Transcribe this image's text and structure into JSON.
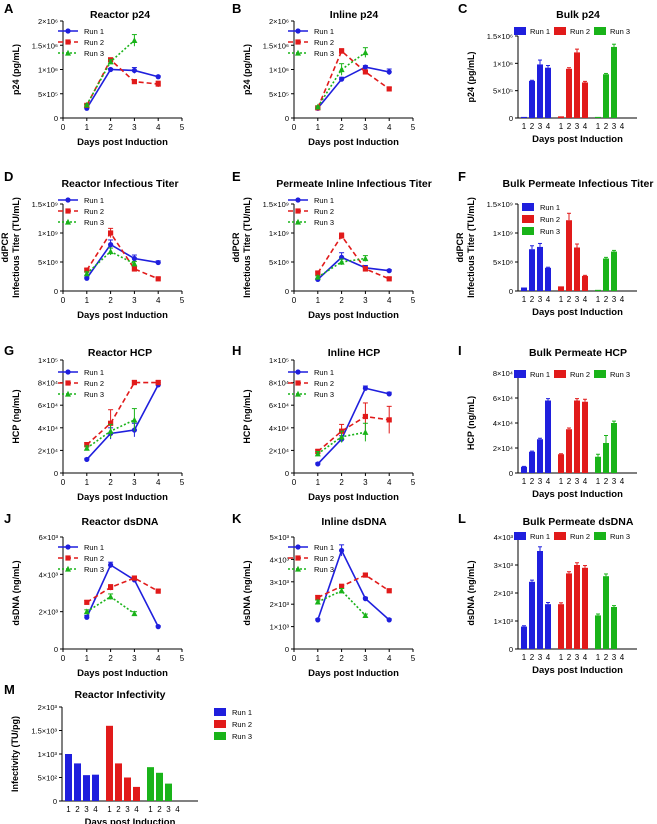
{
  "figure": {
    "series_names": [
      "Run 1",
      "Run 2",
      "Run 3"
    ],
    "colors": [
      "#1f1fdd",
      "#e11a1a",
      "#19b319"
    ]
  },
  "chart_data": [
    {
      "letter": "A",
      "type": "line",
      "title": "Reactor p24",
      "ylabel": "p24 (pg/mL)",
      "xlabel": "Days post Induction",
      "x": [
        1,
        2,
        3,
        4
      ],
      "xlim": [
        0,
        5
      ],
      "xticks": [
        "0",
        "1",
        "2",
        "3",
        "4",
        "5"
      ],
      "ylim": [
        0,
        2000000
      ],
      "yticks": [
        0,
        500000,
        1000000,
        1500000,
        2000000
      ],
      "ytick_labels": [
        "0",
        "5×10⁵",
        "1×10⁶",
        "1.5×10⁶",
        "2×10⁶"
      ],
      "series": [
        {
          "name": "Run 1",
          "values": [
            200000,
            1000000,
            980000,
            850000
          ],
          "err": [
            15000,
            20000,
            60000,
            20000
          ]
        },
        {
          "name": "Run 2",
          "values": [
            260000,
            1200000,
            750000,
            700000
          ],
          "err": [
            15000,
            30000,
            30000,
            60000
          ]
        },
        {
          "name": "Run 3",
          "values": [
            270000,
            1160000,
            1600000,
            null
          ],
          "err": [
            15000,
            40000,
            120000,
            null
          ]
        }
      ]
    },
    {
      "letter": "B",
      "type": "line",
      "title": "Inline p24",
      "ylabel": "p24 (pg/mL)",
      "xlabel": "Days post Induction",
      "x": [
        1,
        2,
        3,
        4
      ],
      "xlim": [
        0,
        5
      ],
      "xticks": [
        "0",
        "1",
        "2",
        "3",
        "4",
        "5"
      ],
      "ylim": [
        0,
        2000000
      ],
      "yticks": [
        0,
        500000,
        1000000,
        1500000,
        2000000
      ],
      "ytick_labels": [
        "0",
        "5×10⁵",
        "1×10⁶",
        "1.5×10⁶",
        "2×10⁶"
      ],
      "series": [
        {
          "name": "Run 1",
          "values": [
            200000,
            800000,
            1050000,
            950000
          ],
          "err": [
            15000,
            40000,
            30000,
            60000
          ]
        },
        {
          "name": "Run 2",
          "values": [
            210000,
            1380000,
            950000,
            600000
          ],
          "err": [
            15000,
            50000,
            40000,
            30000
          ]
        },
        {
          "name": "Run 3",
          "values": [
            230000,
            1000000,
            1350000,
            null
          ],
          "err": [
            15000,
            120000,
            100000,
            null
          ]
        }
      ]
    },
    {
      "letter": "C",
      "type": "bar",
      "title": "Bulk p24",
      "ylabel": "p24 (pg/mL)",
      "xlabel": "Days post Induction",
      "categories": [
        "1",
        "2",
        "3",
        "4"
      ],
      "legend_top": true,
      "ylim": [
        0,
        1500000
      ],
      "yticks": [
        0,
        500000,
        1000000,
        1500000
      ],
      "ytick_labels": [
        "0",
        "5×10⁵",
        "1×10⁶",
        "1.5×10⁶"
      ],
      "series": [
        {
          "name": "Run 1",
          "values": [
            20000,
            680000,
            980000,
            920000
          ],
          "err": [
            0,
            10000,
            80000,
            40000
          ]
        },
        {
          "name": "Run 2",
          "values": [
            30000,
            900000,
            1200000,
            650000
          ],
          "err": [
            0,
            20000,
            60000,
            20000
          ]
        },
        {
          "name": "Run 3",
          "values": [
            20000,
            800000,
            1300000,
            null
          ],
          "err": [
            0,
            15000,
            50000,
            null
          ]
        }
      ]
    },
    {
      "letter": "D",
      "type": "line",
      "title": "Reactor Infectious Titer",
      "ylabel": "Infectious Titer (TU/mL)",
      "ylabel_top": "ddPCR",
      "xlabel": "Days post Induction",
      "x": [
        1,
        2,
        3,
        4
      ],
      "xlim": [
        0,
        5
      ],
      "xticks": [
        "0",
        "1",
        "2",
        "3",
        "4",
        "5"
      ],
      "ylim": [
        0,
        1500000000
      ],
      "yticks": [
        0,
        500000000,
        1000000000,
        1500000000
      ],
      "ytick_labels": [
        "0",
        "5×10⁸",
        "1×10⁹",
        "1.5×10⁹"
      ],
      "series": [
        {
          "name": "Run 1",
          "values": [
            220000000,
            800000000,
            560000000,
            490000000
          ],
          "err": [
            20000000,
            80000000,
            60000000,
            30000000
          ]
        },
        {
          "name": "Run 2",
          "values": [
            360000000,
            1000000000,
            380000000,
            210000000
          ],
          "err": [
            30000000,
            80000000,
            40000000,
            20000000
          ]
        },
        {
          "name": "Run 3",
          "values": [
            300000000,
            680000000,
            470000000,
            null
          ],
          "err": [
            30000000,
            60000000,
            40000000,
            null
          ]
        }
      ]
    },
    {
      "letter": "E",
      "type": "line",
      "title": "Permeate Inline Infectious Titer",
      "ylabel": "Infectious Titer (TU/mL)",
      "ylabel_top": "ddPCR",
      "xlabel": "Days post Induction",
      "x": [
        1,
        2,
        3,
        4
      ],
      "xlim": [
        0,
        5
      ],
      "xticks": [
        "0",
        "1",
        "2",
        "3",
        "4",
        "5"
      ],
      "ylim": [
        0,
        1500000000
      ],
      "yticks": [
        0,
        500000000,
        1000000000,
        1500000000
      ],
      "ytick_labels": [
        "0",
        "5×10⁸",
        "1×10⁹",
        "1.5×10⁹"
      ],
      "series": [
        {
          "name": "Run 1",
          "values": [
            200000000,
            580000000,
            400000000,
            350000000
          ],
          "err": [
            20000000,
            80000000,
            40000000,
            20000000
          ]
        },
        {
          "name": "Run 2",
          "values": [
            310000000,
            950000000,
            380000000,
            210000000
          ],
          "err": [
            20000000,
            50000000,
            40000000,
            20000000
          ]
        },
        {
          "name": "Run 3",
          "values": [
            240000000,
            500000000,
            560000000,
            null
          ],
          "err": [
            20000000,
            50000000,
            50000000,
            null
          ]
        }
      ]
    },
    {
      "letter": "F",
      "type": "bar",
      "title": "Bulk Permeate Infectious Titer",
      "ylabel": "Infectious Titer (TU/mL)",
      "ylabel_top": "ddPCR",
      "xlabel": "Days post Induction",
      "categories": [
        "1",
        "2",
        "3",
        "4"
      ],
      "legend_top": false,
      "ylim": [
        0,
        1500000000
      ],
      "yticks": [
        0,
        500000000,
        1000000000,
        1500000000
      ],
      "ytick_labels": [
        "0",
        "5×10⁸",
        "1×10⁹",
        "1.5×10⁹"
      ],
      "series": [
        {
          "name": "Run 1",
          "values": [
            60000000,
            720000000,
            760000000,
            400000000
          ],
          "err": [
            0,
            60000000,
            60000000,
            10000000
          ]
        },
        {
          "name": "Run 2",
          "values": [
            80000000,
            1220000000,
            750000000,
            260000000
          ],
          "err": [
            0,
            120000000,
            60000000,
            10000000
          ]
        },
        {
          "name": "Run 3",
          "values": [
            20000000,
            560000000,
            680000000,
            null
          ],
          "err": [
            0,
            20000000,
            20000000,
            null
          ]
        }
      ]
    },
    {
      "letter": "G",
      "type": "line",
      "title": "Reactor HCP",
      "ylabel": "HCP (ng/mL)",
      "xlabel": "Days post Induction",
      "x": [
        1,
        2,
        3,
        4
      ],
      "xlim": [
        0,
        5
      ],
      "xticks": [
        "0",
        "1",
        "2",
        "3",
        "4",
        "5"
      ],
      "ylim": [
        0,
        100000
      ],
      "yticks": [
        0,
        20000,
        40000,
        60000,
        80000,
        100000
      ],
      "ytick_labels": [
        "0",
        "2×10⁴",
        "4×10⁴",
        "6×10⁴",
        "8×10⁴",
        "1×10⁵"
      ],
      "series": [
        {
          "name": "Run 1",
          "values": [
            12000,
            35000,
            38000,
            78000
          ],
          "err": [
            1000,
            5000,
            6000,
            2000
          ]
        },
        {
          "name": "Run 2",
          "values": [
            25000,
            44000,
            80000,
            80000
          ],
          "err": [
            2000,
            12000,
            2000,
            2000
          ]
        },
        {
          "name": "Run 3",
          "values": [
            22000,
            37000,
            47000,
            null
          ],
          "err": [
            2000,
            6000,
            10000,
            null
          ]
        }
      ]
    },
    {
      "letter": "H",
      "type": "line",
      "title": "Inline HCP",
      "ylabel": "HCP (ng/mL)",
      "xlabel": "Days post Induction",
      "x": [
        1,
        2,
        3,
        4
      ],
      "xlim": [
        0,
        5
      ],
      "xticks": [
        "0",
        "1",
        "2",
        "3",
        "4",
        "5"
      ],
      "ylim": [
        0,
        100000
      ],
      "yticks": [
        0,
        20000,
        40000,
        60000,
        80000,
        100000
      ],
      "ytick_labels": [
        "0",
        "2×10⁴",
        "4×10⁴",
        "6×10⁴",
        "8×10⁴",
        "1×10⁵"
      ],
      "series": [
        {
          "name": "Run 1",
          "values": [
            8000,
            30000,
            75000,
            70000
          ],
          "err": [
            1000,
            3000,
            2000,
            1500
          ]
        },
        {
          "name": "Run 2",
          "values": [
            19000,
            37000,
            50000,
            47000
          ],
          "err": [
            2000,
            6000,
            12000,
            12000
          ]
        },
        {
          "name": "Run 3",
          "values": [
            17000,
            32000,
            36000,
            null
          ],
          "err": [
            2000,
            5000,
            8000,
            null
          ]
        }
      ]
    },
    {
      "letter": "I",
      "type": "bar",
      "title": "Bulk Permeate HCP",
      "ylabel": "HCP (ng/mL)",
      "xlabel": "Days post Induction",
      "categories": [
        "1",
        "2",
        "3",
        "4"
      ],
      "legend_top": true,
      "ylim": [
        0,
        80000
      ],
      "yticks": [
        0,
        20000,
        40000,
        60000,
        80000
      ],
      "ytick_labels": [
        "0",
        "2×10⁴",
        "4×10⁴",
        "6×10⁴",
        "8×10⁴"
      ],
      "series": [
        {
          "name": "Run 1",
          "values": [
            5000,
            17000,
            27000,
            58000
          ],
          "err": [
            300,
            500,
            800,
            1500
          ]
        },
        {
          "name": "Run 2",
          "values": [
            15000,
            35000,
            58000,
            57000
          ],
          "err": [
            400,
            1000,
            1500,
            2000
          ]
        },
        {
          "name": "Run 3",
          "values": [
            13000,
            24000,
            40000,
            null
          ],
          "err": [
            2000,
            6000,
            1500,
            null
          ]
        }
      ]
    },
    {
      "letter": "J",
      "type": "line",
      "title": "Reactor dsDNA",
      "ylabel": "dsDNA (ng/mL)",
      "xlabel": "Days post Induction",
      "x": [
        1,
        2,
        3,
        4
      ],
      "xlim": [
        0,
        5
      ],
      "xticks": [
        "0",
        "1",
        "2",
        "3",
        "4",
        "5"
      ],
      "ylim": [
        0,
        6000
      ],
      "yticks": [
        0,
        2000,
        4000,
        6000
      ],
      "ytick_labels": [
        "0",
        "2×10³",
        "4×10³",
        "6×10³"
      ],
      "series": [
        {
          "name": "Run 1",
          "values": [
            1700,
            4500,
            3700,
            1200
          ],
          "err": [
            100,
            150,
            100,
            50
          ]
        },
        {
          "name": "Run 2",
          "values": [
            2500,
            3300,
            3800,
            3100
          ],
          "err": [
            100,
            150,
            100,
            100
          ]
        },
        {
          "name": "Run 3",
          "values": [
            2000,
            2800,
            1900,
            null
          ],
          "err": [
            100,
            150,
            100,
            null
          ]
        }
      ]
    },
    {
      "letter": "K",
      "type": "line",
      "title": "Inline dsDNA",
      "ylabel": "dsDNA (ng/mL)",
      "xlabel": "Days post Induction",
      "x": [
        1,
        2,
        3,
        4
      ],
      "xlim": [
        0,
        5
      ],
      "xticks": [
        "0",
        "1",
        "2",
        "3",
        "4",
        "5"
      ],
      "ylim": [
        0,
        5000
      ],
      "yticks": [
        0,
        1000,
        2000,
        3000,
        4000,
        5000
      ],
      "ytick_labels": [
        "0",
        "1×10³",
        "2×10³",
        "3×10³",
        "4×10³",
        "5×10³"
      ],
      "series": [
        {
          "name": "Run 1",
          "values": [
            1300,
            4400,
            2250,
            1300
          ],
          "err": [
            50,
            250,
            60,
            50
          ]
        },
        {
          "name": "Run 2",
          "values": [
            2300,
            2800,
            3300,
            2600
          ],
          "err": [
            80,
            80,
            80,
            80
          ]
        },
        {
          "name": "Run 3",
          "values": [
            2100,
            2600,
            1500,
            null
          ],
          "err": [
            80,
            100,
            60,
            null
          ]
        }
      ]
    },
    {
      "letter": "L",
      "type": "bar",
      "title": "Bulk Permeate dsDNA",
      "ylabel": "dsDNA (ng/mL)",
      "xlabel": "Days post Induction",
      "categories": [
        "1",
        "2",
        "3",
        "4"
      ],
      "legend_top": true,
      "ylim": [
        0,
        4000
      ],
      "yticks": [
        0,
        1000,
        2000,
        3000,
        4000
      ],
      "ytick_labels": [
        "0",
        "1×10³",
        "2×10³",
        "3×10³",
        "4×10³"
      ],
      "series": [
        {
          "name": "Run 1",
          "values": [
            800,
            2400,
            3500,
            1600
          ],
          "err": [
            30,
            60,
            150,
            60
          ]
        },
        {
          "name": "Run 2",
          "values": [
            1600,
            2700,
            3000,
            2900
          ],
          "err": [
            50,
            60,
            80,
            80
          ]
        },
        {
          "name": "Run 3",
          "values": [
            1200,
            2600,
            1500,
            null
          ],
          "err": [
            50,
            80,
            50,
            null
          ]
        }
      ]
    },
    {
      "letter": "M",
      "type": "bar",
      "title": "Reactor Infectivity",
      "ylabel": "Infectivity  (TU/pg)",
      "xlabel": "Days post Induction",
      "categories": [
        "1",
        "2",
        "3",
        "4"
      ],
      "legend_top": false,
      "ylim": [
        0,
        2000
      ],
      "yticks": [
        0,
        500,
        1000,
        1500,
        2000
      ],
      "ytick_labels": [
        "0",
        "5×10²",
        "1×10³",
        "1.5×10³",
        "2×10³"
      ],
      "series": [
        {
          "name": "Run 1",
          "values": [
            1000,
            800,
            550,
            560
          ],
          "err": [
            0,
            0,
            0,
            0
          ]
        },
        {
          "name": "Run 2",
          "values": [
            1600,
            800,
            500,
            300
          ],
          "err": [
            0,
            0,
            0,
            0
          ]
        },
        {
          "name": "Run 3",
          "values": [
            720,
            600,
            370,
            null
          ],
          "err": [
            0,
            0,
            0,
            null
          ]
        }
      ]
    }
  ]
}
